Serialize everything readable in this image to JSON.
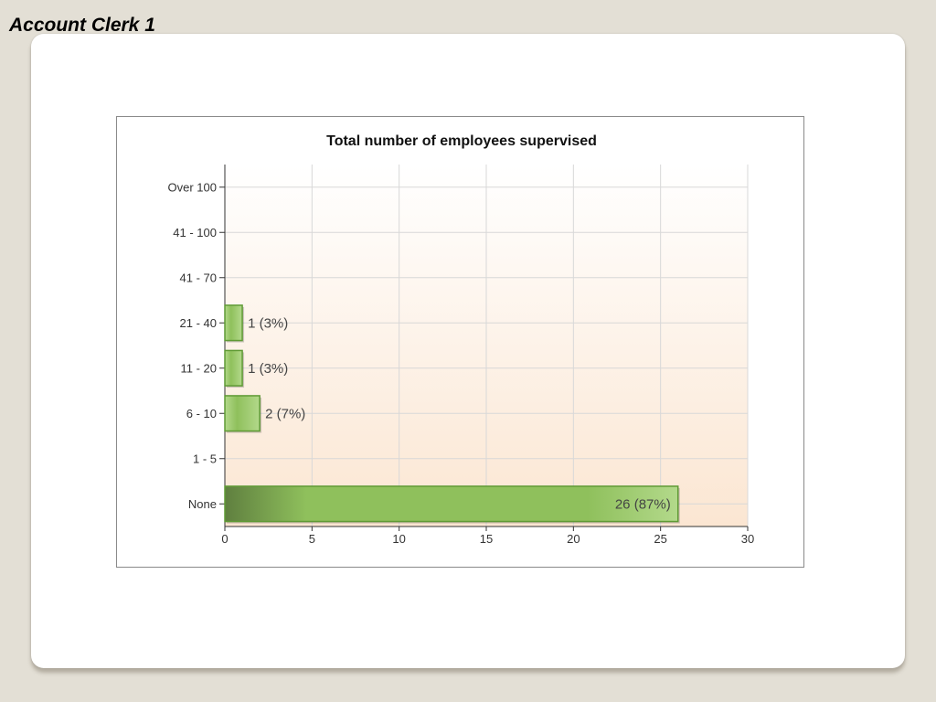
{
  "page": {
    "title": "Account Clerk 1"
  },
  "chart_data": {
    "type": "bar",
    "orientation": "horizontal",
    "title": "Total number of employees supervised",
    "xlabel": "",
    "ylabel": "",
    "categories": [
      "Over 100",
      "41 - 100",
      "41 - 70",
      "21 - 40",
      "11 - 20",
      "6 - 10",
      "1 - 5",
      "None"
    ],
    "values": [
      0,
      0,
      0,
      1,
      1,
      2,
      0,
      26
    ],
    "data_labels": [
      "",
      "",
      "",
      "1 (3%)",
      "1 (3%)",
      "2 (7%)",
      "",
      "26 (87%)"
    ],
    "xlim": [
      0,
      30
    ],
    "xticks": [
      0,
      5,
      10,
      15,
      20,
      25,
      30
    ],
    "grid": true,
    "legend": "none",
    "colors": {
      "bar_light": "#b3d98b",
      "bar_mid": "#8fc05c",
      "bar_dark": "#5f7f3f",
      "bar_border": "#5f9a35",
      "plot_bg_top": "#ffffff",
      "plot_bg_bottom": "#fbe6d2"
    }
  }
}
